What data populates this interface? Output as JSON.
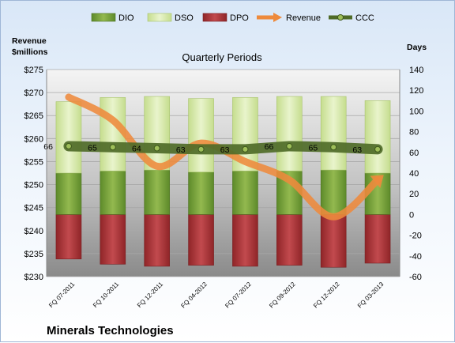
{
  "chart_data": {
    "type": "bar",
    "title": "Quarterly Periods",
    "company": "Minerals Technologies",
    "left_axis": {
      "label_line1": "Revenue",
      "label_line2": "$millions",
      "ylim": [
        230,
        275
      ],
      "ticks": [
        "$230",
        "$235",
        "$240",
        "$245",
        "$250",
        "$255",
        "$260",
        "$265",
        "$270",
        "$275"
      ],
      "tick_values": [
        230,
        235,
        240,
        245,
        250,
        255,
        260,
        265,
        270,
        275
      ]
    },
    "right_axis": {
      "label": "Days",
      "ylim": [
        -60,
        140
      ],
      "ticks": [
        "-60",
        "-40",
        "-20",
        "0",
        "20",
        "40",
        "60",
        "80",
        "100",
        "120",
        "140"
      ],
      "tick_values": [
        -60,
        -40,
        -20,
        0,
        20,
        40,
        60,
        80,
        100,
        120,
        140
      ]
    },
    "categories": [
      "FQ 07-2011",
      "FQ 10-2011",
      "FQ 12-2011",
      "FQ 04-2012",
      "FQ 07-2012",
      "FQ 09-2012",
      "FQ 12-2012",
      "FQ 03-2013"
    ],
    "legend": [
      "DIO",
      "DSO",
      "DPO",
      "Revenue",
      "CCC"
    ],
    "series": [
      {
        "name": "DIO",
        "axis": "days",
        "values": [
          40,
          42,
          43,
          41,
          42,
          42,
          43,
          40
        ]
      },
      {
        "name": "DSO",
        "axis": "days",
        "values": [
          69,
          71,
          71,
          71,
          71,
          72,
          71,
          70
        ]
      },
      {
        "name": "DPO",
        "axis": "days",
        "values": [
          -43,
          -48,
          -50,
          -49,
          -50,
          -49,
          -51,
          -47
        ]
      },
      {
        "name": "Revenue",
        "axis": "revenue",
        "values": [
          269,
          264,
          254,
          259,
          255,
          251,
          243,
          251
        ]
      },
      {
        "name": "CCC",
        "axis": "days",
        "values": [
          66,
          65,
          64,
          63,
          63,
          66,
          65,
          63
        ]
      }
    ],
    "ccc_labels": [
      "66",
      "65",
      "64",
      "63",
      "63",
      "66",
      "65",
      "63"
    ],
    "colors": {
      "DIO": "#7fa33f",
      "DSO": "#dbebb0",
      "DPO": "#b83a3e",
      "Revenue": "#ee8a3c",
      "CCC": "#4f6b28",
      "plot_bg": "#c9c9c9"
    },
    "grid": true,
    "legend_position": "top"
  }
}
